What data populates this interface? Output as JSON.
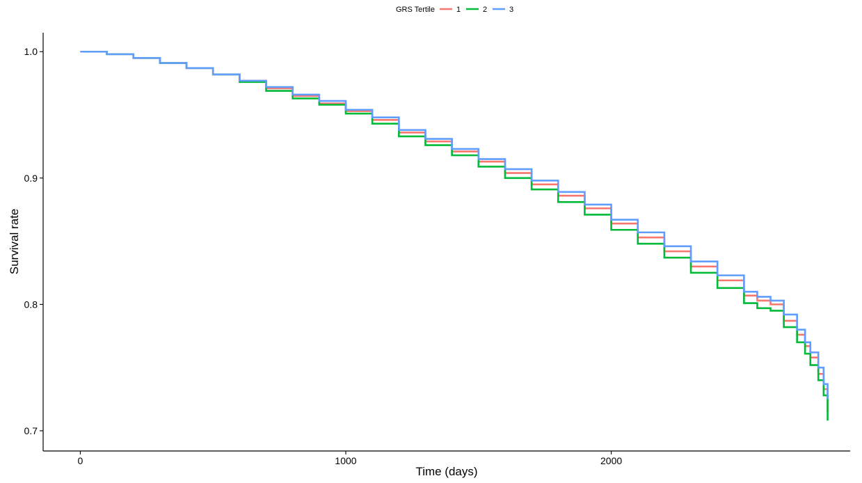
{
  "chart_data": {
    "type": "line",
    "step": true,
    "title": "",
    "xlabel": "Time (days)",
    "ylabel": "Survival rate",
    "xlim": [
      -140,
      2900
    ],
    "ylim": [
      0.684,
      1.015
    ],
    "xticks": [
      0,
      1000,
      2000
    ],
    "xtick_labels": [
      "0",
      "1000",
      "2000"
    ],
    "yticks": [
      0.7,
      0.8,
      0.9,
      1.0
    ],
    "ytick_labels": [
      "0.7",
      "0.8",
      "0.9",
      "1.0"
    ],
    "grid": false,
    "legend": {
      "title": "GRS Tertile",
      "position": "top",
      "entries": [
        "1",
        "2",
        "3"
      ]
    },
    "series": [
      {
        "name": "1",
        "color": "#F8766D",
        "x": [
          0,
          100,
          200,
          300,
          400,
          500,
          600,
          700,
          800,
          900,
          1000,
          1100,
          1200,
          1300,
          1400,
          1500,
          1600,
          1700,
          1800,
          1900,
          2000,
          2100,
          2200,
          2300,
          2400,
          2500,
          2550,
          2600,
          2650,
          2700,
          2730,
          2750,
          2780,
          2800,
          2815
        ],
        "y": [
          1.0,
          0.998,
          0.995,
          0.991,
          0.987,
          0.982,
          0.977,
          0.971,
          0.965,
          0.959,
          0.953,
          0.946,
          0.936,
          0.929,
          0.921,
          0.913,
          0.904,
          0.895,
          0.886,
          0.876,
          0.864,
          0.853,
          0.842,
          0.83,
          0.819,
          0.807,
          0.803,
          0.8,
          0.787,
          0.776,
          0.767,
          0.758,
          0.745,
          0.733,
          0.715
        ]
      },
      {
        "name": "2",
        "color": "#00BA38",
        "x": [
          0,
          100,
          200,
          300,
          400,
          500,
          600,
          700,
          800,
          900,
          1000,
          1100,
          1200,
          1300,
          1400,
          1500,
          1600,
          1700,
          1800,
          1900,
          2000,
          2100,
          2200,
          2300,
          2400,
          2500,
          2550,
          2600,
          2650,
          2700,
          2730,
          2750,
          2780,
          2800,
          2815
        ],
        "y": [
          1.0,
          0.998,
          0.995,
          0.991,
          0.987,
          0.982,
          0.976,
          0.969,
          0.963,
          0.958,
          0.951,
          0.943,
          0.933,
          0.926,
          0.918,
          0.909,
          0.9,
          0.891,
          0.881,
          0.871,
          0.859,
          0.848,
          0.837,
          0.825,
          0.813,
          0.801,
          0.797,
          0.795,
          0.782,
          0.77,
          0.761,
          0.752,
          0.74,
          0.728,
          0.708
        ]
      },
      {
        "name": "3",
        "color": "#619CFF",
        "x": [
          0,
          100,
          200,
          300,
          400,
          500,
          600,
          700,
          800,
          900,
          1000,
          1100,
          1200,
          1300,
          1400,
          1500,
          1600,
          1700,
          1800,
          1900,
          2000,
          2100,
          2200,
          2300,
          2400,
          2500,
          2550,
          2600,
          2650,
          2700,
          2730,
          2750,
          2780,
          2800,
          2815
        ],
        "y": [
          1.0,
          0.998,
          0.995,
          0.991,
          0.987,
          0.982,
          0.977,
          0.972,
          0.966,
          0.961,
          0.954,
          0.948,
          0.938,
          0.931,
          0.923,
          0.915,
          0.907,
          0.898,
          0.889,
          0.879,
          0.867,
          0.857,
          0.846,
          0.834,
          0.823,
          0.81,
          0.806,
          0.803,
          0.792,
          0.78,
          0.77,
          0.762,
          0.75,
          0.737,
          0.725
        ]
      }
    ]
  }
}
